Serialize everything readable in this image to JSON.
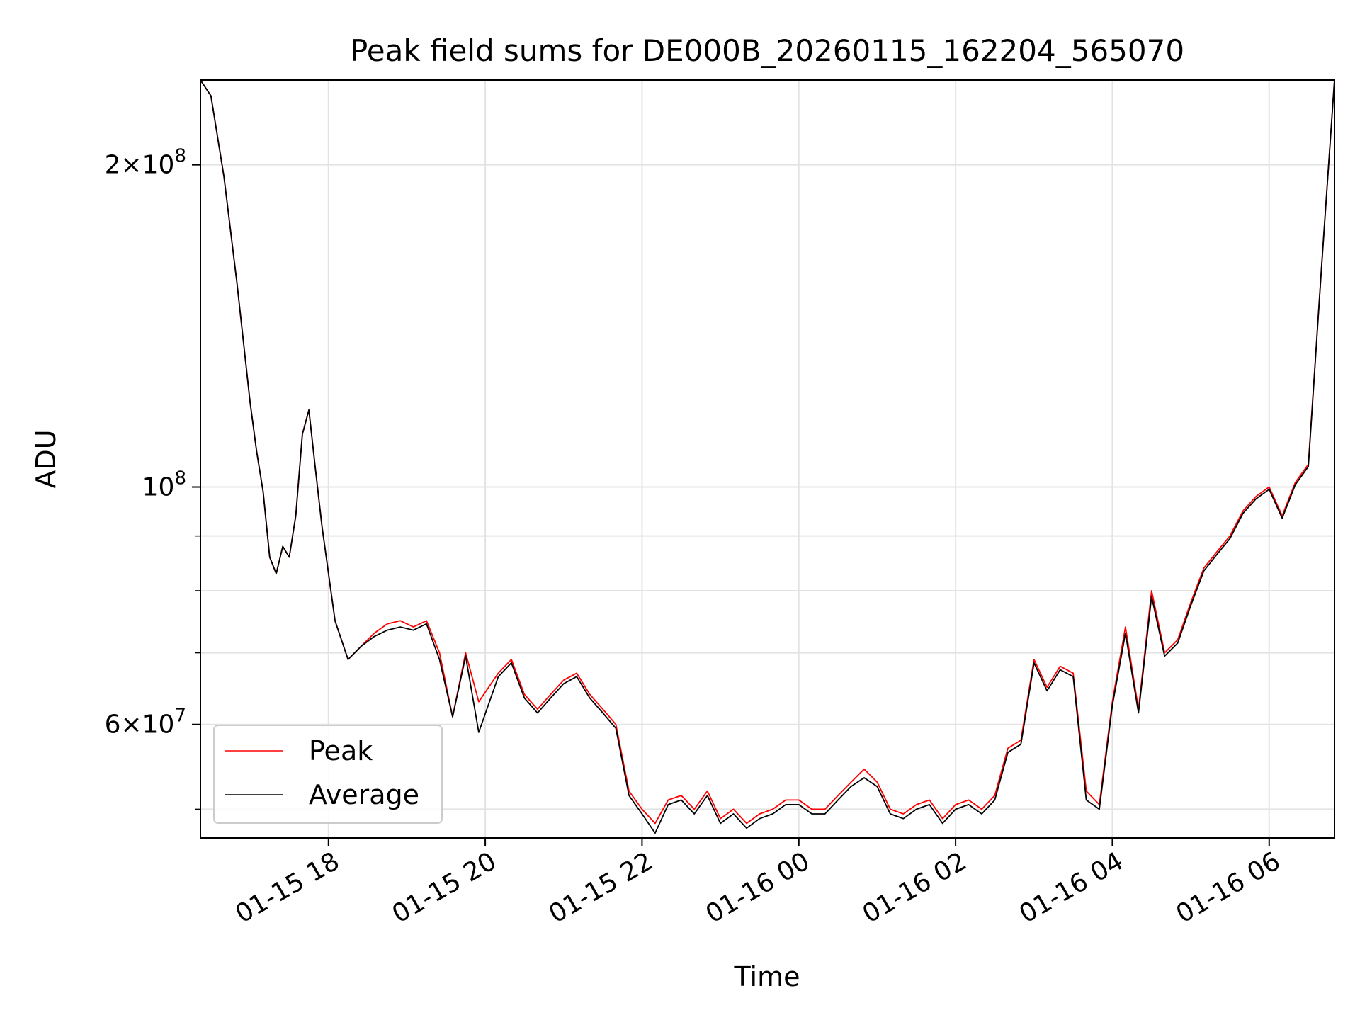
{
  "chart_data": {
    "type": "line",
    "title": "Peak field sums for DE000B_20260115_162204_565070",
    "xlabel": "Time",
    "ylabel": "ADU",
    "y_scale": "log",
    "ylim": [
      47000000,
      240000000
    ],
    "xlim": [
      "2026-01-15 16:22",
      "2026-01-16 06:50"
    ],
    "grid": true,
    "legend_position": "lower-left",
    "x_ticks": [
      "01-15 18",
      "01-15 20",
      "01-15 22",
      "01-16 00",
      "01-16 02",
      "01-16 04",
      "01-16 06"
    ],
    "y_ticks_major": [
      {
        "value": 200000000,
        "mantissa": "2",
        "exponent": "8"
      },
      {
        "value": 100000000,
        "mantissa": "",
        "exponent": "8"
      },
      {
        "value": 60000000,
        "mantissa": "6",
        "exponent": "7"
      }
    ],
    "y_ticks_minor": [
      50000000,
      70000000,
      80000000,
      90000000
    ],
    "x": [
      "2026-01-15 16:22",
      "2026-01-15 16:30",
      "2026-01-15 16:40",
      "2026-01-15 16:50",
      "2026-01-15 17:00",
      "2026-01-15 17:05",
      "2026-01-15 17:10",
      "2026-01-15 17:15",
      "2026-01-15 17:20",
      "2026-01-15 17:25",
      "2026-01-15 17:30",
      "2026-01-15 17:35",
      "2026-01-15 17:40",
      "2026-01-15 17:45",
      "2026-01-15 17:50",
      "2026-01-15 17:55",
      "2026-01-15 18:05",
      "2026-01-15 18:15",
      "2026-01-15 18:25",
      "2026-01-15 18:35",
      "2026-01-15 18:45",
      "2026-01-15 18:55",
      "2026-01-15 19:05",
      "2026-01-15 19:15",
      "2026-01-15 19:25",
      "2026-01-15 19:35",
      "2026-01-15 19:45",
      "2026-01-15 19:55",
      "2026-01-15 20:10",
      "2026-01-15 20:20",
      "2026-01-15 20:30",
      "2026-01-15 20:40",
      "2026-01-15 20:50",
      "2026-01-15 21:00",
      "2026-01-15 21:10",
      "2026-01-15 21:20",
      "2026-01-15 21:30",
      "2026-01-15 21:40",
      "2026-01-15 21:50",
      "2026-01-15 22:00",
      "2026-01-15 22:10",
      "2026-01-15 22:20",
      "2026-01-15 22:30",
      "2026-01-15 22:40",
      "2026-01-15 22:50",
      "2026-01-15 23:00",
      "2026-01-15 23:10",
      "2026-01-15 23:20",
      "2026-01-15 23:30",
      "2026-01-15 23:40",
      "2026-01-15 23:50",
      "2026-01-16 00:00",
      "2026-01-16 00:10",
      "2026-01-16 00:20",
      "2026-01-16 00:30",
      "2026-01-16 00:40",
      "2026-01-16 00:50",
      "2026-01-16 01:00",
      "2026-01-16 01:10",
      "2026-01-16 01:20",
      "2026-01-16 01:30",
      "2026-01-16 01:40",
      "2026-01-16 01:50",
      "2026-01-16 02:00",
      "2026-01-16 02:10",
      "2026-01-16 02:20",
      "2026-01-16 02:30",
      "2026-01-16 02:40",
      "2026-01-16 02:50",
      "2026-01-16 03:00",
      "2026-01-16 03:10",
      "2026-01-16 03:20",
      "2026-01-16 03:30",
      "2026-01-16 03:40",
      "2026-01-16 03:50",
      "2026-01-16 04:00",
      "2026-01-16 04:10",
      "2026-01-16 04:20",
      "2026-01-16 04:30",
      "2026-01-16 04:40",
      "2026-01-16 04:50",
      "2026-01-16 05:00",
      "2026-01-16 05:10",
      "2026-01-16 05:20",
      "2026-01-16 05:30",
      "2026-01-16 05:40",
      "2026-01-16 05:50",
      "2026-01-16 06:00",
      "2026-01-16 06:10",
      "2026-01-16 06:20",
      "2026-01-16 06:30",
      "2026-01-16 06:40",
      "2026-01-16 06:50"
    ],
    "series": [
      {
        "name": "Peak",
        "color": "#ff0000",
        "values": [
          240000000,
          232000000,
          195000000,
          155000000,
          120000000,
          108000000,
          99000000,
          86000000,
          83000000,
          88000000,
          86000000,
          94000000,
          112000000,
          118000000,
          104000000,
          92000000,
          75000000,
          69000000,
          71000000,
          73000000,
          74500000,
          75000000,
          74000000,
          75000000,
          70000000,
          61000000,
          70000000,
          63000000,
          67000000,
          69000000,
          64000000,
          62000000,
          64000000,
          66000000,
          67000000,
          64000000,
          62000000,
          60000000,
          52000000,
          50000000,
          48500000,
          51000000,
          51500000,
          50000000,
          52000000,
          49000000,
          50000000,
          48500000,
          49500000,
          50000000,
          51000000,
          51000000,
          50000000,
          50000000,
          51500000,
          53000000,
          54500000,
          53000000,
          50000000,
          49500000,
          50500000,
          51000000,
          49000000,
          50500000,
          51000000,
          50000000,
          51500000,
          57000000,
          58000000,
          69000000,
          65000000,
          68000000,
          67000000,
          52000000,
          50500000,
          63000000,
          74000000,
          62000000,
          80000000,
          70000000,
          72000000,
          78000000,
          84000000,
          87000000,
          90000000,
          95000000,
          98000000,
          100000000,
          94000000,
          101000000,
          105000000,
          160000000,
          240000000
        ]
      },
      {
        "name": "Average",
        "color": "#000000",
        "values": [
          240000000,
          232000000,
          195000000,
          155000000,
          120000000,
          108000000,
          99000000,
          86000000,
          83000000,
          88000000,
          86000000,
          94000000,
          112000000,
          118000000,
          104000000,
          92000000,
          75000000,
          69000000,
          71000000,
          72500000,
          73500000,
          74000000,
          73500000,
          74500000,
          69000000,
          61000000,
          69500000,
          59000000,
          66500000,
          68500000,
          63500000,
          61500000,
          63500000,
          65500000,
          66500000,
          63500000,
          61500000,
          59500000,
          51500000,
          49500000,
          47500000,
          50500000,
          51000000,
          49500000,
          51500000,
          48500000,
          49500000,
          48000000,
          49000000,
          49500000,
          50500000,
          50500000,
          49500000,
          49500000,
          51000000,
          52500000,
          53500000,
          52500000,
          49500000,
          49000000,
          50000000,
          50500000,
          48500000,
          50000000,
          50500000,
          49500000,
          51000000,
          56500000,
          57500000,
          68500000,
          64500000,
          67500000,
          66500000,
          51000000,
          50000000,
          62500000,
          73000000,
          61500000,
          79000000,
          69500000,
          71500000,
          77500000,
          83500000,
          86500000,
          89500000,
          94500000,
          97500000,
          99500000,
          93500000,
          100500000,
          104500000,
          160000000,
          240000000
        ]
      }
    ]
  }
}
